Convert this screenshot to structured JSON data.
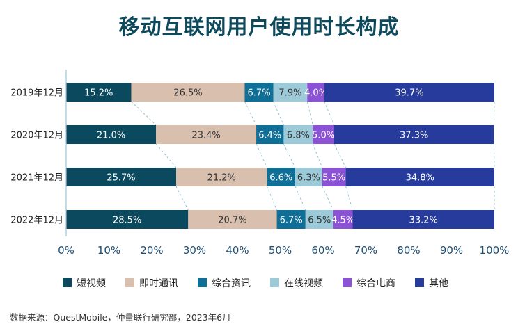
{
  "title": "移动互联网用户使用时长构成",
  "source": "数据来源：QuestMobile，仲量联行研究部，2023年6月",
  "colors": {
    "短视频": "#0b4a5e",
    "即时通讯": "#d8bfae",
    "综合资讯": "#0f6f96",
    "在线视频": "#9ccad8",
    "综合电商": "#8b52d6",
    "其他": "#263b9b"
  },
  "chart_data": {
    "type": "bar",
    "orientation": "horizontal",
    "stacked": true,
    "categories": [
      "2019年12月",
      "2020年12月",
      "2021年12月",
      "2022年12月"
    ],
    "series": [
      {
        "name": "短视频",
        "values": [
          15.2,
          21.0,
          25.7,
          28.5
        ]
      },
      {
        "name": "即时通讯",
        "values": [
          26.5,
          23.4,
          21.2,
          20.7
        ]
      },
      {
        "name": "综合资讯",
        "values": [
          6.7,
          6.4,
          6.6,
          6.7
        ]
      },
      {
        "name": "在线视频",
        "values": [
          7.9,
          6.8,
          6.3,
          6.5
        ]
      },
      {
        "name": "综合电商",
        "values": [
          4.0,
          5.0,
          5.5,
          4.5
        ]
      },
      {
        "name": "其他",
        "values": [
          39.7,
          37.3,
          34.8,
          33.2
        ]
      }
    ],
    "xlim": [
      0,
      100
    ],
    "xticks": [
      "0%",
      "10%",
      "20%",
      "30%",
      "40%",
      "50%",
      "60%",
      "70%",
      "80%",
      "90%",
      "100%"
    ],
    "legend": "bottom",
    "grid": false
  }
}
